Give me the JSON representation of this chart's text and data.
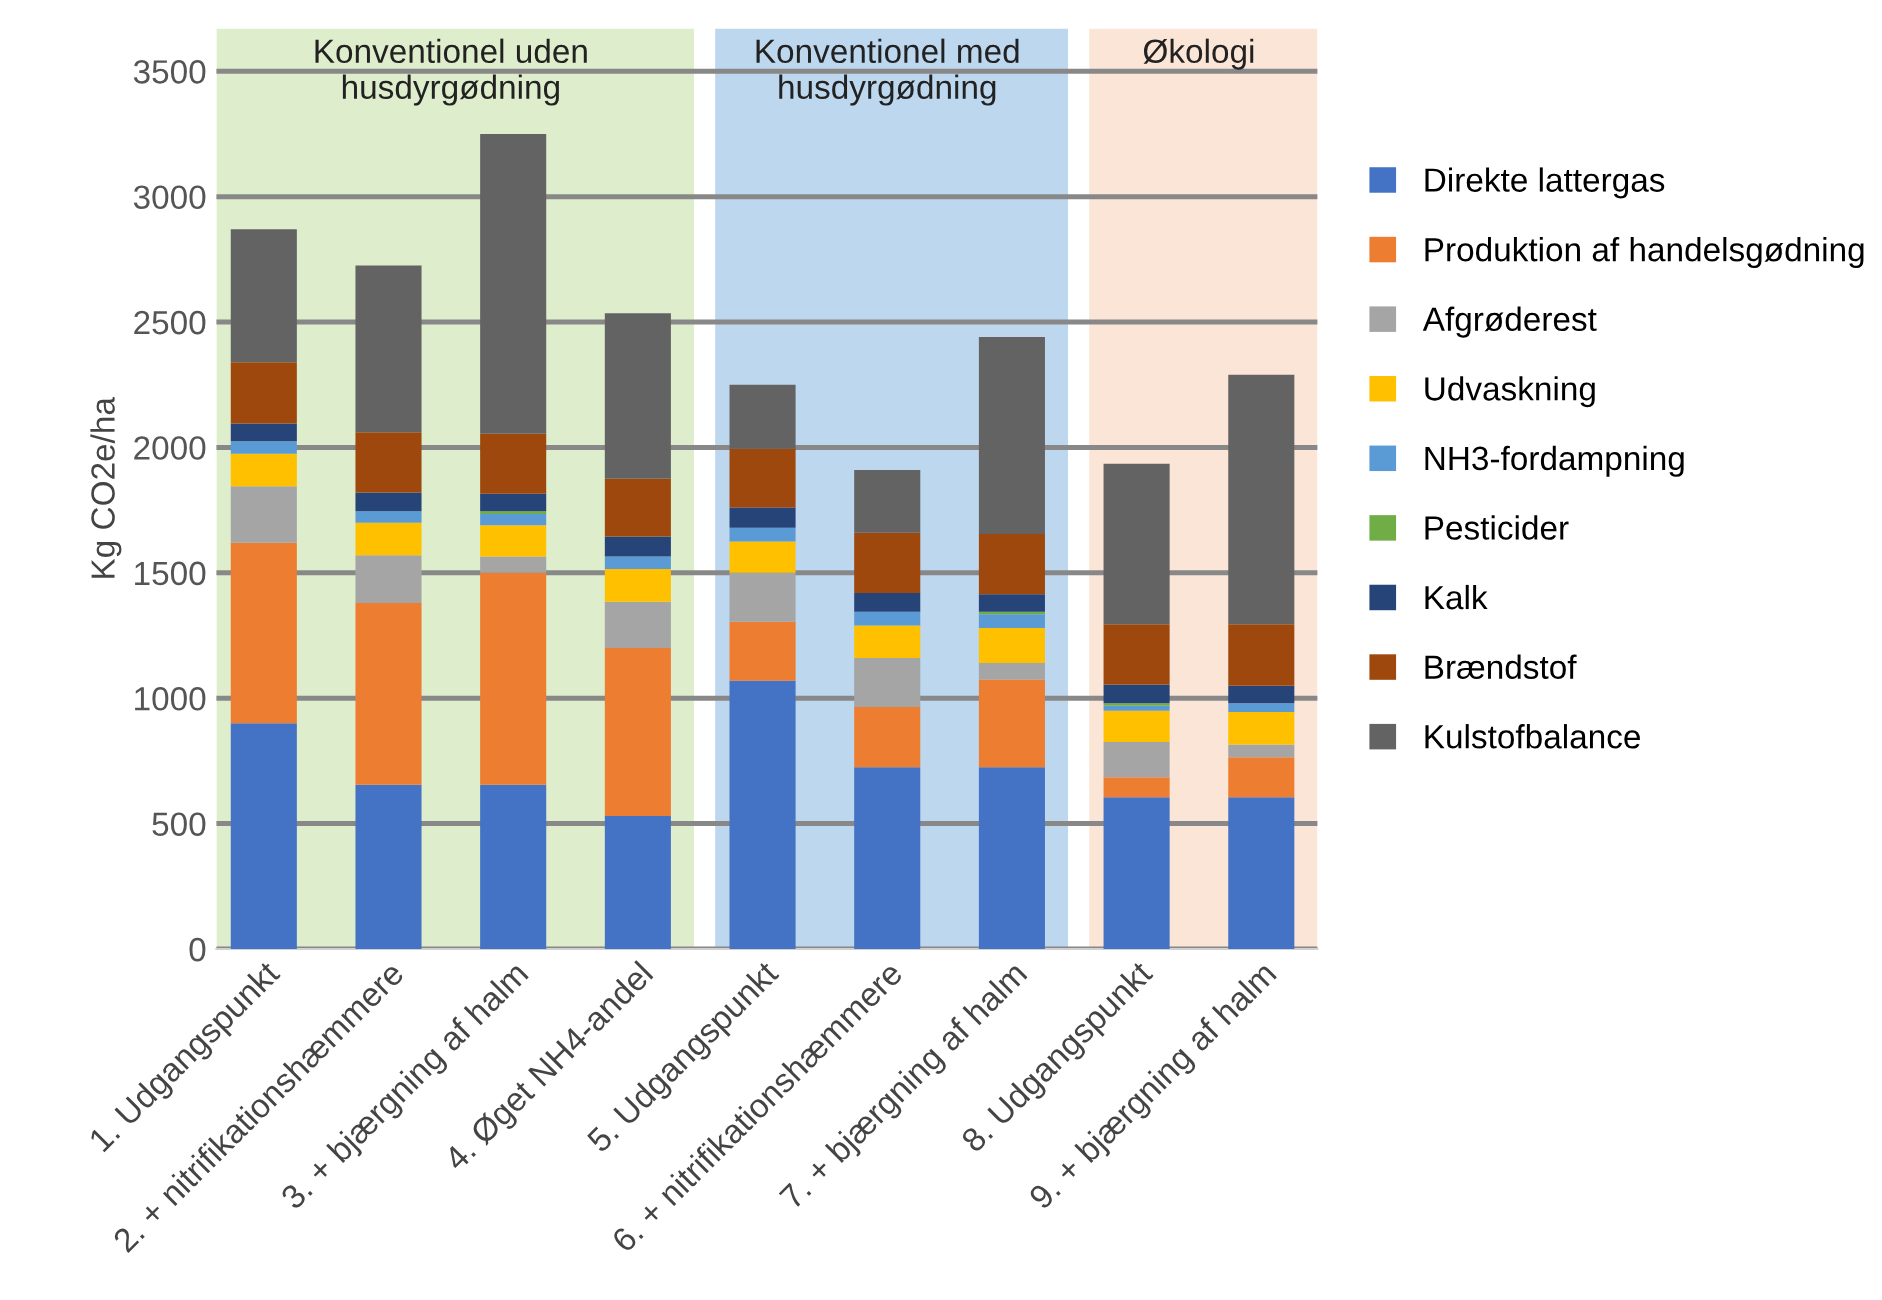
{
  "chart_data": {
    "type": "bar",
    "stacked": true,
    "ylabel": "Kg CO2e/ha",
    "categories": [
      "1. Udgangspunkt",
      "2. + nitrifikationshæmmere",
      "3. + bjærgning af halm",
      "4. Øget NH4-andel",
      "5. Udgangspunkt",
      "6. + nitrifikationshæmmere",
      "7. + bjærgning af halm",
      "8. Udgangspunkt",
      "9. + bjærgning af halm"
    ],
    "series": [
      {
        "name": "Direkte lattergas",
        "color": "#4472c4",
        "values": [
          900,
          655,
          655,
          530,
          1070,
          725,
          725,
          605,
          605
        ]
      },
      {
        "name": "Produktion af handelsgødning",
        "color": "#ed7d31",
        "values": [
          720,
          725,
          845,
          670,
          235,
          240,
          350,
          80,
          160
        ]
      },
      {
        "name": "Afgrøderest",
        "color": "#a5a5a5",
        "values": [
          225,
          190,
          65,
          185,
          195,
          195,
          65,
          140,
          50
        ]
      },
      {
        "name": "Udvaskning",
        "color": "#ffc000",
        "values": [
          130,
          130,
          125,
          130,
          125,
          130,
          140,
          125,
          130
        ]
      },
      {
        "name": "NH3-fordampning",
        "color": "#5b9bd5",
        "values": [
          50,
          45,
          45,
          50,
          55,
          55,
          55,
          20,
          35
        ]
      },
      {
        "name": "Pesticider",
        "color": "#70ad47",
        "values": [
          0,
          0,
          10,
          0,
          0,
          0,
          10,
          10,
          0
        ]
      },
      {
        "name": "Kalk",
        "color": "#264478",
        "values": [
          70,
          75,
          70,
          80,
          80,
          75,
          70,
          75,
          70
        ]
      },
      {
        "name": "Brændstof",
        "color": "#9e480e",
        "values": [
          245,
          240,
          240,
          230,
          235,
          240,
          240,
          240,
          245
        ]
      },
      {
        "name": "Kulstofbalance",
        "color": "#636363",
        "values": [
          530,
          665,
          1195,
          660,
          255,
          250,
          785,
          640,
          995
        ]
      }
    ],
    "bands": [
      {
        "axis": "x",
        "from": "1. Udgangspunkt",
        "to": "4. Øget NH4-andel",
        "label": "Konventionel uden\nhusdyrgødning",
        "color": "#deedcb"
      },
      {
        "axis": "x",
        "from": "5. Udgangspunkt",
        "to": "7. + bjærgning af halm",
        "label": "Konventionel med\nhusdyrgødning",
        "color": "#bdd7ee"
      },
      {
        "axis": "x",
        "from": "8. Udgangspunkt",
        "to": "9. + bjærgning af halm",
        "label": "Økologi",
        "color": "#fbe5d6"
      }
    ],
    "ylim": [
      0,
      3670
    ],
    "yticks": [
      0,
      500,
      1000,
      1500,
      2000,
      2500,
      3000,
      3500
    ],
    "grid": "y",
    "legend": "right"
  }
}
